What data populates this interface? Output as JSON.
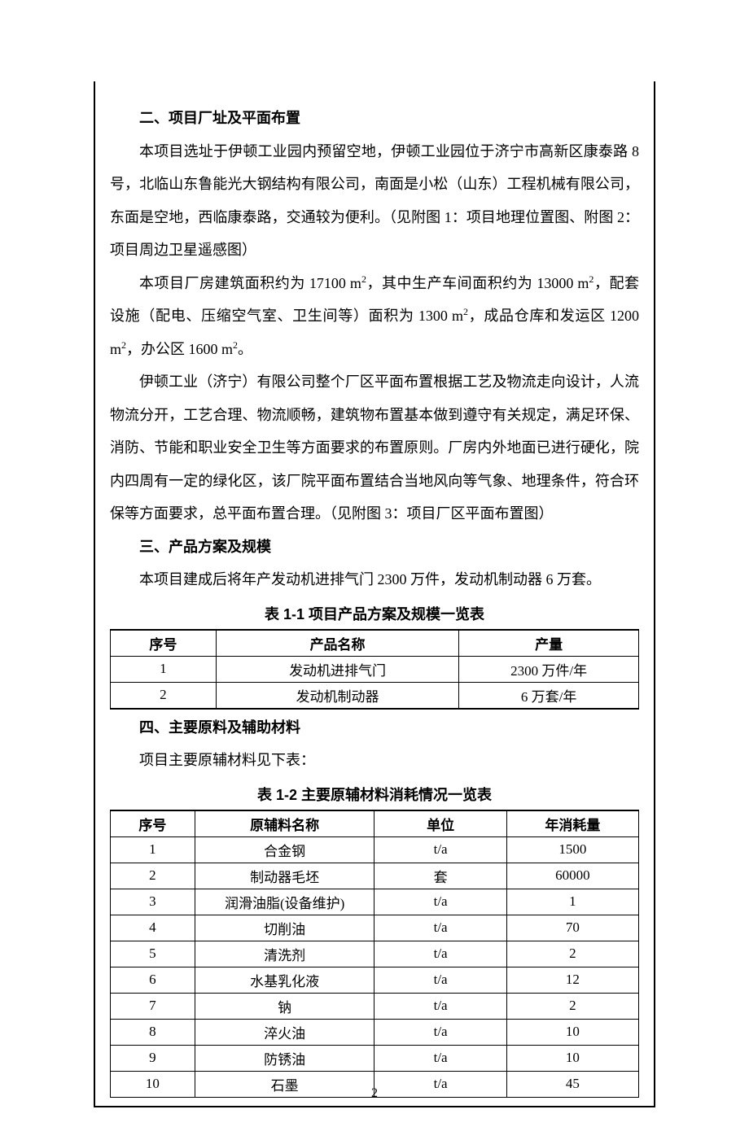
{
  "page_number": "2",
  "section2": {
    "heading": "二、项目厂址及平面布置",
    "p1": "本项目选址于伊顿工业园内预留空地，伊顿工业园位于济宁市高新区康泰路 8 号，北临山东鲁能光大钢结构有限公司，南面是小松（山东）工程机械有限公司，东面是空地，西临康泰路，交通较为便利。（见附图 1：项目地理位置图、附图 2：项目周边卫星遥感图）",
    "p2_parts": {
      "a": "本项目厂房建筑面积约为 17100 m",
      "b": "，其中生产车间面积约为 13000 m",
      "c": "，配套设施（配电、压缩空气室、卫生间等）面积为 1300 m",
      "d": "，成品仓库和发运区 1200 m",
      "e": "，办公区 1600 m",
      "f": "。"
    },
    "p3": "伊顿工业（济宁）有限公司整个厂区平面布置根据工艺及物流走向设计，人流物流分开，工艺合理、物流顺畅，建筑物布置基本做到遵守有关规定，满足环保、消防、节能和职业安全卫生等方面要求的布置原则。厂房内外地面已进行硬化，院内四周有一定的绿化区，该厂院平面布置结合当地风向等气象、地理条件，符合环保等方面要求，总平面布置合理。（见附图 3：项目厂区平面布置图）"
  },
  "section3": {
    "heading": "三、产品方案及规模",
    "p1": "本项目建成后将年产发动机进排气门 2300 万件，发动机制动器 6 万套。",
    "table_caption": "表 1-1  项目产品方案及规模一览表",
    "headers": [
      "序号",
      "产品名称",
      "产量"
    ],
    "rows": [
      [
        "1",
        "发动机进排气门",
        "2300 万件/年"
      ],
      [
        "2",
        "发动机制动器",
        "6 万套/年"
      ]
    ],
    "col_widths": [
      "20%",
      "46%",
      "34%"
    ]
  },
  "section4": {
    "heading": "四、主要原料及辅助材料",
    "p1": "项目主要原辅材料见下表：",
    "table_caption": "表 1-2  主要原辅材料消耗情况一览表",
    "headers": [
      "序号",
      "原辅料名称",
      "单位",
      "年消耗量"
    ],
    "rows": [
      [
        "1",
        "合金钢",
        "t/a",
        "1500"
      ],
      [
        "2",
        "制动器毛坯",
        "套",
        "60000"
      ],
      [
        "3",
        "润滑油脂(设备维护)",
        "t/a",
        "1"
      ],
      [
        "4",
        "切削油",
        "t/a",
        "70"
      ],
      [
        "5",
        "清洗剂",
        "t/a",
        "2"
      ],
      [
        "6",
        "水基乳化液",
        "t/a",
        "12"
      ],
      [
        "7",
        "钠",
        "t/a",
        "2"
      ],
      [
        "8",
        "淬火油",
        "t/a",
        "10"
      ],
      [
        "9",
        "防锈油",
        "t/a",
        "10"
      ],
      [
        "10",
        "石墨",
        "t/a",
        "45"
      ]
    ],
    "col_widths": [
      "16%",
      "34%",
      "25%",
      "25%"
    ]
  }
}
